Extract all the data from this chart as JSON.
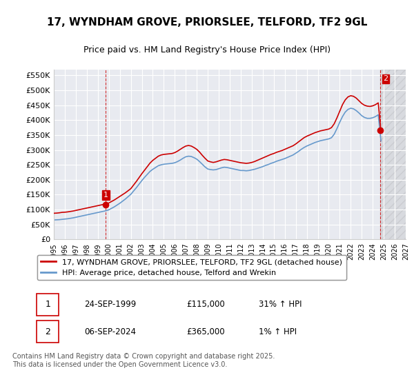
{
  "title": "17, WYNDHAM GROVE, PRIORSLEE, TELFORD, TF2 9GL",
  "subtitle": "Price paid vs. HM Land Registry's House Price Index (HPI)",
  "xlabel": "",
  "ylabel": "",
  "ylim": [
    0,
    570000
  ],
  "yticks": [
    0,
    50000,
    100000,
    150000,
    200000,
    250000,
    300000,
    350000,
    400000,
    450000,
    500000,
    550000
  ],
  "ytick_labels": [
    "£0",
    "£50K",
    "£100K",
    "£150K",
    "£200K",
    "£250K",
    "£300K",
    "£350K",
    "£400K",
    "£450K",
    "£500K",
    "£550K"
  ],
  "xlim_start": 1995,
  "xlim_end": 2027,
  "background_color": "#ffffff",
  "plot_bg_color": "#e8eaf0",
  "grid_color": "#ffffff",
  "red_line_color": "#cc0000",
  "blue_line_color": "#6699cc",
  "legend_label_red": "17, WYNDHAM GROVE, PRIORSLEE, TELFORD, TF2 9GL (detached house)",
  "legend_label_blue": "HPI: Average price, detached house, Telford and Wrekin",
  "transaction1_label": "1",
  "transaction1_date": "24-SEP-1999",
  "transaction1_price": "£115,000",
  "transaction1_hpi": "31% ↑ HPI",
  "transaction2_label": "2",
  "transaction2_date": "06-SEP-2024",
  "transaction2_price": "£365,000",
  "transaction2_hpi": "1% ↑ HPI",
  "footer": "Contains HM Land Registry data © Crown copyright and database right 2025.\nThis data is licensed under the Open Government Licence v3.0.",
  "marker1_year": 1999.73,
  "marker1_price": 115000,
  "marker2_year": 2024.68,
  "marker2_price": 365000,
  "vline1_year": 1999.73,
  "vline2_year": 2024.68,
  "hpi_red_years": [
    1995.0,
    1995.25,
    1995.5,
    1995.75,
    1996.0,
    1996.25,
    1996.5,
    1996.75,
    1997.0,
    1997.25,
    1997.5,
    1997.75,
    1998.0,
    1998.25,
    1998.5,
    1998.75,
    1999.0,
    1999.25,
    1999.5,
    1999.75,
    2000.0,
    2000.25,
    2000.5,
    2000.75,
    2001.0,
    2001.25,
    2001.5,
    2001.75,
    2002.0,
    2002.25,
    2002.5,
    2002.75,
    2003.0,
    2003.25,
    2003.5,
    2003.75,
    2004.0,
    2004.25,
    2004.5,
    2004.75,
    2005.0,
    2005.25,
    2005.5,
    2005.75,
    2006.0,
    2006.25,
    2006.5,
    2006.75,
    2007.0,
    2007.25,
    2007.5,
    2007.75,
    2008.0,
    2008.25,
    2008.5,
    2008.75,
    2009.0,
    2009.25,
    2009.5,
    2009.75,
    2010.0,
    2010.25,
    2010.5,
    2010.75,
    2011.0,
    2011.25,
    2011.5,
    2011.75,
    2012.0,
    2012.25,
    2012.5,
    2012.75,
    2013.0,
    2013.25,
    2013.5,
    2013.75,
    2014.0,
    2014.25,
    2014.5,
    2014.75,
    2015.0,
    2015.25,
    2015.5,
    2015.75,
    2016.0,
    2016.25,
    2016.5,
    2016.75,
    2017.0,
    2017.25,
    2017.5,
    2017.75,
    2018.0,
    2018.25,
    2018.5,
    2018.75,
    2019.0,
    2019.25,
    2019.5,
    2019.75,
    2020.0,
    2020.25,
    2020.5,
    2020.75,
    2021.0,
    2021.25,
    2021.5,
    2021.75,
    2022.0,
    2022.25,
    2022.5,
    2022.75,
    2023.0,
    2023.25,
    2023.5,
    2023.75,
    2024.0,
    2024.25,
    2024.5,
    2024.75
  ],
  "hpi_red_values": [
    87500,
    88000,
    89000,
    90500,
    91000,
    92000,
    93500,
    95000,
    97000,
    99000,
    101000,
    103000,
    105000,
    107000,
    109000,
    111000,
    113000,
    115000,
    117000,
    119000,
    122000,
    127000,
    132000,
    138000,
    144000,
    150000,
    156000,
    163000,
    170000,
    182000,
    194000,
    207000,
    220000,
    232000,
    244000,
    256000,
    265000,
    272000,
    279000,
    283000,
    285000,
    286000,
    287000,
    288000,
    291000,
    296000,
    302000,
    308000,
    313000,
    315000,
    313000,
    308000,
    302000,
    293000,
    282000,
    272000,
    263000,
    260000,
    258000,
    260000,
    263000,
    266000,
    268000,
    267000,
    265000,
    263000,
    261000,
    259000,
    257000,
    256000,
    255000,
    256000,
    258000,
    261000,
    265000,
    269000,
    273000,
    277000,
    281000,
    285000,
    288000,
    292000,
    295000,
    298000,
    302000,
    306000,
    310000,
    314000,
    320000,
    327000,
    334000,
    341000,
    346000,
    350000,
    354000,
    358000,
    361000,
    364000,
    366000,
    368000,
    370000,
    375000,
    388000,
    408000,
    430000,
    452000,
    468000,
    478000,
    482000,
    480000,
    474000,
    465000,
    456000,
    450000,
    447000,
    446000,
    448000,
    452000,
    458000,
    362000
  ],
  "hpi_blue_years": [
    1995.0,
    1995.25,
    1995.5,
    1995.75,
    1996.0,
    1996.25,
    1996.5,
    1996.75,
    1997.0,
    1997.25,
    1997.5,
    1997.75,
    1998.0,
    1998.25,
    1998.5,
    1998.75,
    1999.0,
    1999.25,
    1999.5,
    1999.75,
    2000.0,
    2000.25,
    2000.5,
    2000.75,
    2001.0,
    2001.25,
    2001.5,
    2001.75,
    2002.0,
    2002.25,
    2002.5,
    2002.75,
    2003.0,
    2003.25,
    2003.5,
    2003.75,
    2004.0,
    2004.25,
    2004.5,
    2004.75,
    2005.0,
    2005.25,
    2005.5,
    2005.75,
    2006.0,
    2006.25,
    2006.5,
    2006.75,
    2007.0,
    2007.25,
    2007.5,
    2007.75,
    2008.0,
    2008.25,
    2008.5,
    2008.75,
    2009.0,
    2009.25,
    2009.5,
    2009.75,
    2010.0,
    2010.25,
    2010.5,
    2010.75,
    2011.0,
    2011.25,
    2011.5,
    2011.75,
    2012.0,
    2012.25,
    2012.5,
    2012.75,
    2013.0,
    2013.25,
    2013.5,
    2013.75,
    2014.0,
    2014.25,
    2014.5,
    2014.75,
    2015.0,
    2015.25,
    2015.5,
    2015.75,
    2016.0,
    2016.25,
    2016.5,
    2016.75,
    2017.0,
    2017.25,
    2017.5,
    2017.75,
    2018.0,
    2018.25,
    2018.5,
    2018.75,
    2019.0,
    2019.25,
    2019.5,
    2019.75,
    2020.0,
    2020.25,
    2020.5,
    2020.75,
    2021.0,
    2021.25,
    2021.5,
    2021.75,
    2022.0,
    2022.25,
    2022.5,
    2022.75,
    2023.0,
    2023.25,
    2023.5,
    2023.75,
    2024.0,
    2024.25,
    2024.5,
    2024.75
  ],
  "hpi_blue_values": [
    65000,
    65500,
    66000,
    67000,
    68000,
    69000,
    70500,
    72000,
    74000,
    76000,
    78000,
    80000,
    82000,
    84000,
    86000,
    88000,
    90000,
    92000,
    94000,
    96000,
    99000,
    104000,
    109000,
    115000,
    121000,
    128000,
    135000,
    143000,
    151000,
    162000,
    173000,
    185000,
    197000,
    208000,
    218000,
    228000,
    235000,
    241000,
    247000,
    250000,
    252000,
    253000,
    254000,
    255000,
    257000,
    261000,
    266000,
    272000,
    277000,
    279000,
    278000,
    274000,
    269000,
    261000,
    252000,
    243000,
    236000,
    234000,
    233000,
    234000,
    237000,
    240000,
    242000,
    241000,
    239000,
    237000,
    235000,
    233000,
    231000,
    231000,
    230000,
    231000,
    233000,
    235000,
    238000,
    241000,
    244000,
    248000,
    251000,
    255000,
    258000,
    262000,
    265000,
    268000,
    271000,
    275000,
    279000,
    283000,
    289000,
    295000,
    302000,
    308000,
    313000,
    317000,
    321000,
    325000,
    328000,
    331000,
    333000,
    335000,
    337000,
    341000,
    353000,
    372000,
    393000,
    412000,
    427000,
    436000,
    440000,
    438000,
    432000,
    424000,
    415000,
    409000,
    406000,
    406000,
    408000,
    412000,
    418000,
    330000
  ]
}
